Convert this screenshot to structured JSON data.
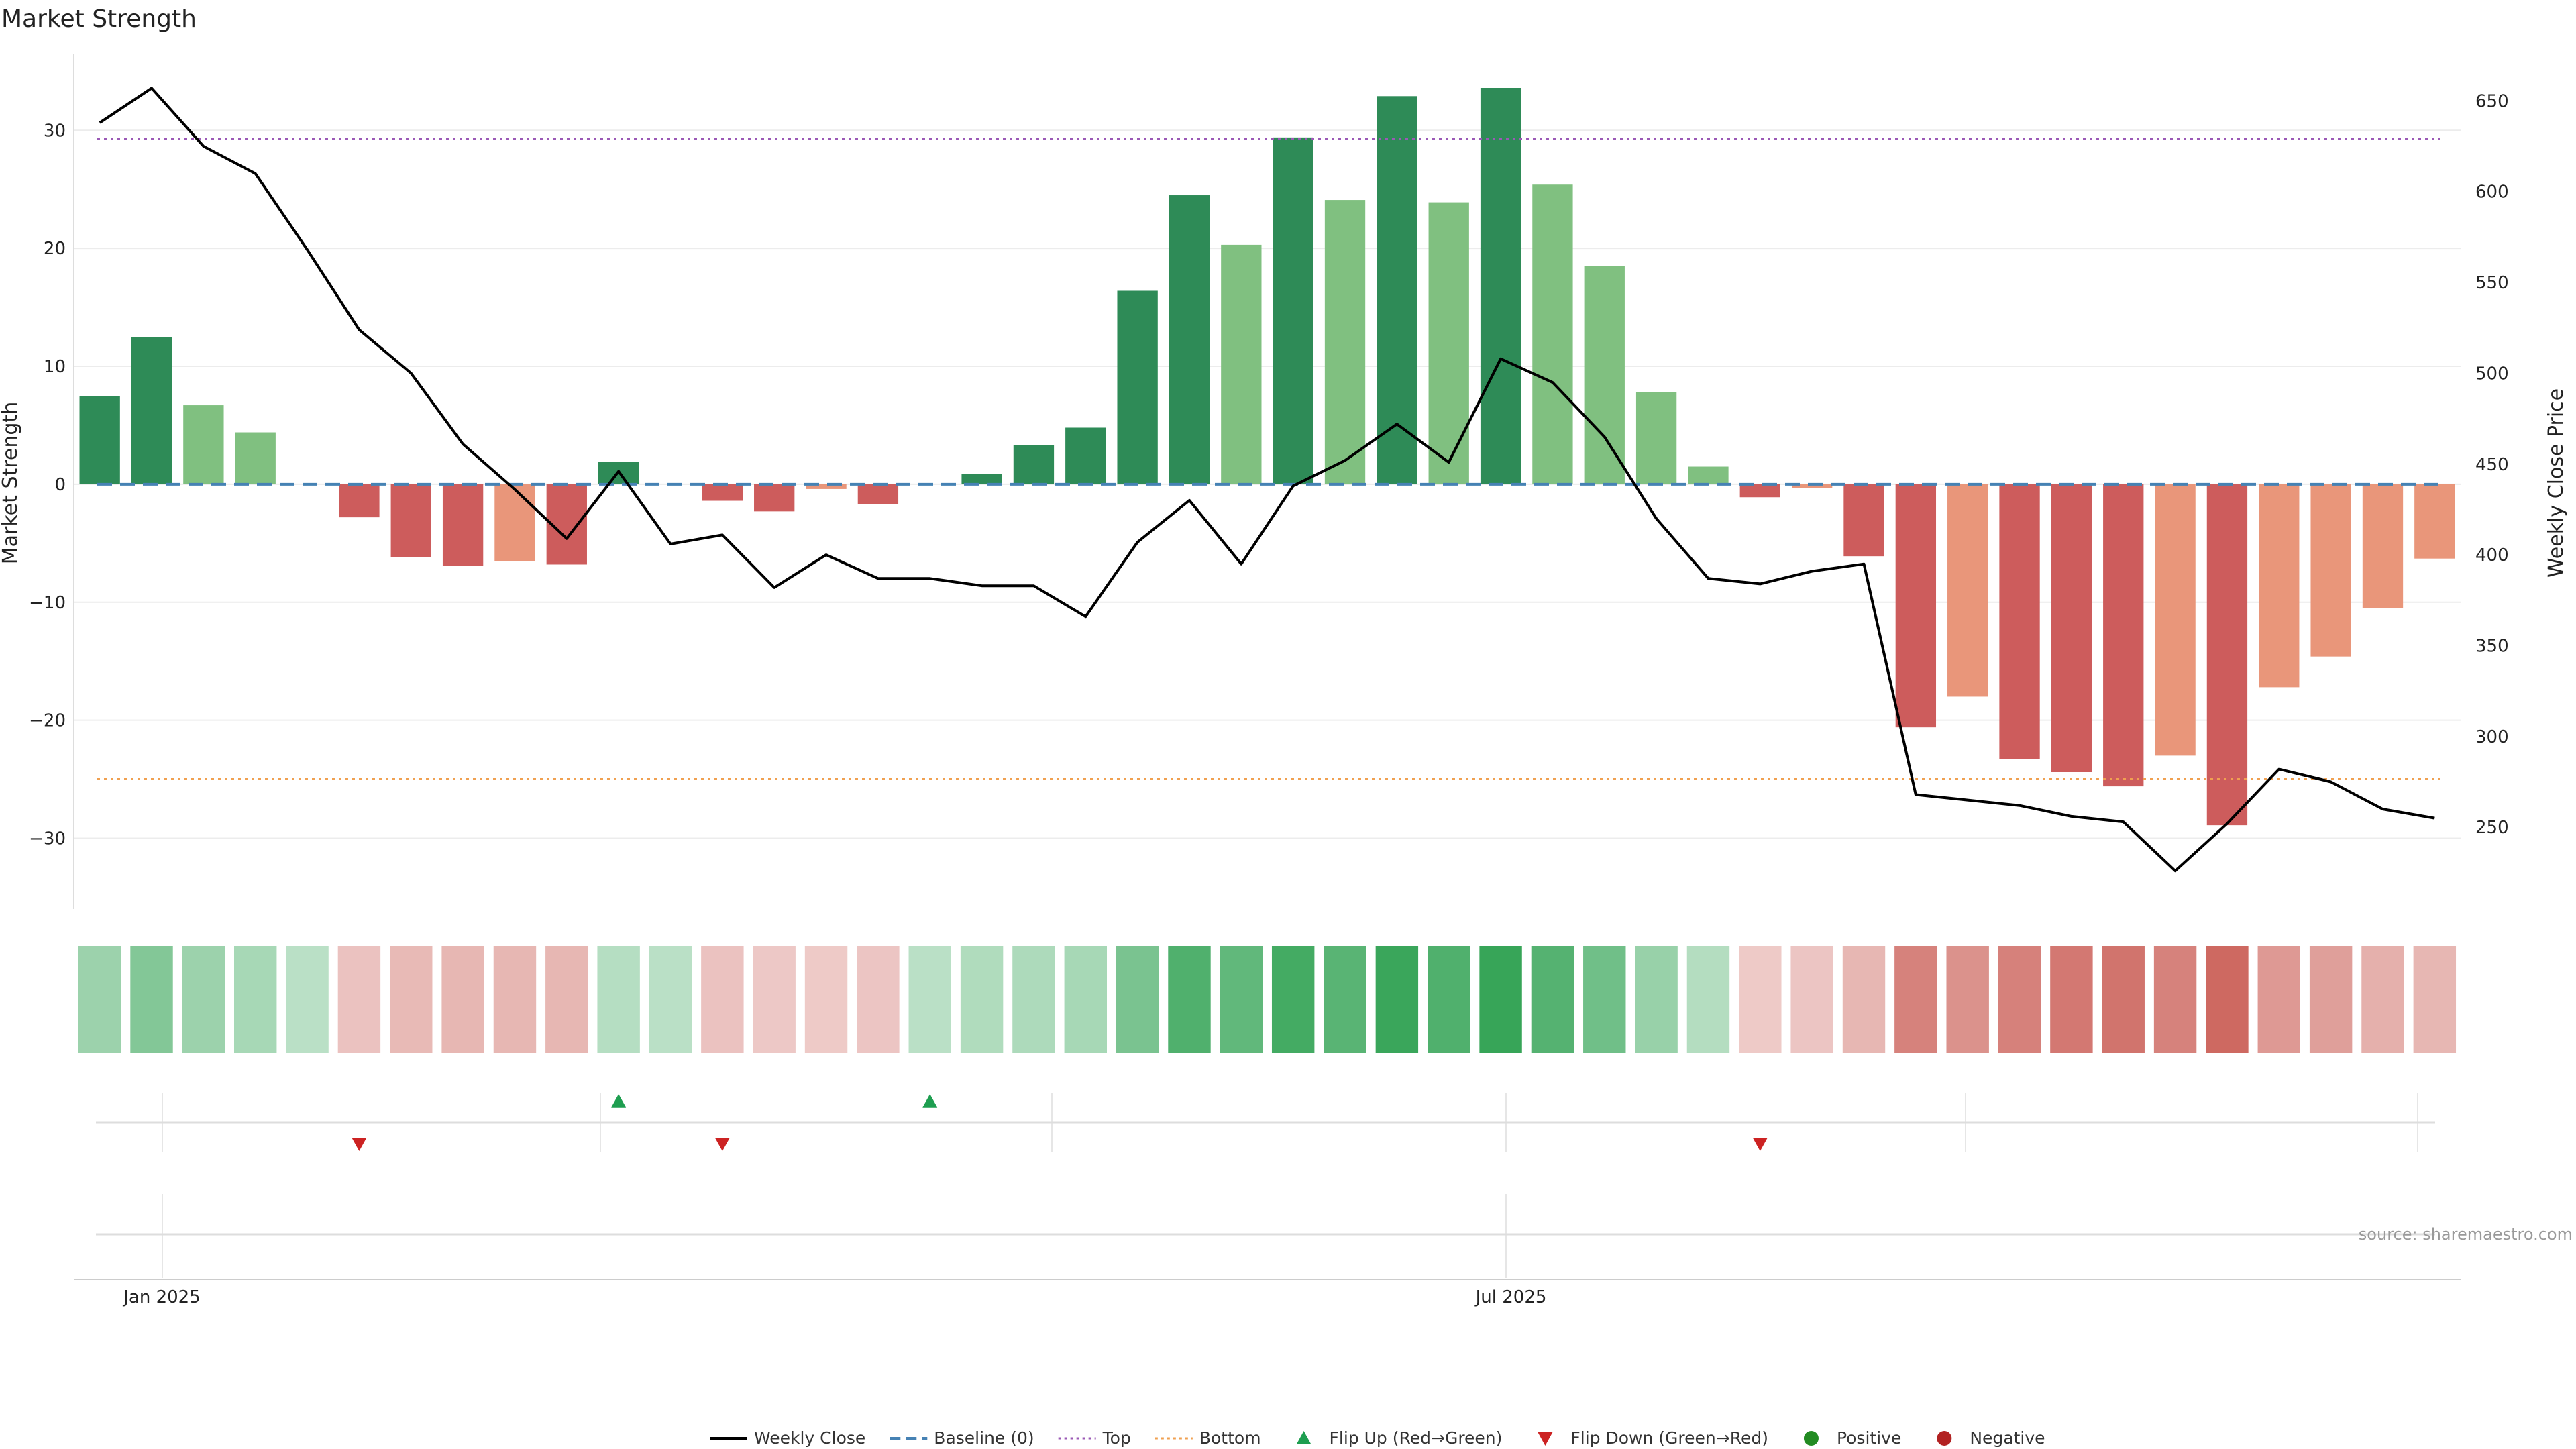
{
  "chart_data": {
    "type": "bar",
    "title": "Market Strength",
    "ylabel": "Market Strength",
    "y2label": "Weekly Close Price",
    "source": "source: sharemaestro.com",
    "ylim": [
      -36,
      36.5
    ],
    "y2lim": [
      205,
      676
    ],
    "yticks": [
      -30,
      -20,
      -10,
      0,
      10,
      20,
      30
    ],
    "y2ticks": [
      250,
      300,
      350,
      400,
      450,
      500,
      550,
      600,
      650
    ],
    "xlabels": [
      {
        "label": "Jan 2025",
        "index": 1.7
      },
      {
        "label": "Jul 2025",
        "index": 27.7
      }
    ],
    "top_line": 29.3,
    "bottom_line": -25,
    "grid": true,
    "legend_position": "bottom",
    "colors": {
      "strong_pos": "#2e8b57",
      "weak_pos": "#80c080",
      "strong_neg": "#cd5c5c",
      "weak_neg": "#e9967a",
      "close": "#000000",
      "baseline": "#4682b4",
      "top": "#9b59b6",
      "bottom": "#f0a050",
      "flip_up": "#1e9e50",
      "flip_down": "#cc2222"
    },
    "series": [
      {
        "name": "Market Strength",
        "values": [
          7.5,
          12.5,
          6.7,
          4.4,
          0,
          -2.8,
          -6.2,
          -6.9,
          -6.5,
          -6.8,
          1.9,
          0,
          -1.4,
          -2.3,
          -0.4,
          -1.7,
          0,
          0.9,
          3.3,
          4.8,
          16.4,
          24.5,
          20.3,
          29.4,
          24.1,
          32.9,
          23.9,
          33.6,
          25.4,
          18.5,
          7.8,
          1.5,
          -1.1,
          -0.3,
          -6.1,
          -20.6,
          -18.0,
          -23.3,
          -24.4,
          -25.6,
          -23.0,
          -28.9,
          -17.2,
          -14.6,
          -10.5,
          -6.3
        ],
        "style": [
          "strong_pos",
          "strong_pos",
          "weak_pos",
          "weak_pos",
          "strong_pos",
          "strong_neg",
          "strong_neg",
          "strong_neg",
          "weak_neg",
          "strong_neg",
          "strong_pos",
          "strong_pos",
          "strong_neg",
          "strong_neg",
          "weak_neg",
          "strong_neg",
          "strong_pos",
          "strong_pos",
          "strong_pos",
          "strong_pos",
          "strong_pos",
          "strong_pos",
          "weak_pos",
          "strong_pos",
          "weak_pos",
          "strong_pos",
          "weak_pos",
          "strong_pos",
          "weak_pos",
          "weak_pos",
          "weak_pos",
          "weak_pos",
          "strong_neg",
          "weak_neg",
          "strong_neg",
          "strong_neg",
          "weak_neg",
          "strong_neg",
          "strong_neg",
          "strong_neg",
          "weak_neg",
          "strong_neg",
          "weak_neg",
          "weak_neg",
          "weak_neg",
          "weak_neg"
        ]
      },
      {
        "name": "Weekly Close",
        "axis": "right",
        "values": [
          638,
          657,
          625,
          610,
          568,
          524,
          500,
          461,
          436,
          409,
          446,
          406,
          411,
          382,
          400,
          387,
          387,
          383,
          383,
          366,
          407,
          430,
          395,
          438,
          452,
          472,
          451,
          508,
          495,
          465,
          420,
          387,
          384,
          391,
          395,
          268,
          265,
          262,
          256,
          253,
          226,
          252,
          282,
          275,
          260,
          255
        ]
      },
      {
        "name": "Baseline (0)",
        "values": [
          0
        ]
      },
      {
        "name": "Top",
        "values": [
          29.3
        ]
      },
      {
        "name": "Bottom",
        "values": [
          -25
        ]
      }
    ],
    "heatmap": {
      "values": [
        0.4,
        0.55,
        0.4,
        0.33,
        0.22,
        0.22,
        0.28,
        0.3,
        0.3,
        0.3,
        0.25,
        0.22,
        0.22,
        0.18,
        0.17,
        0.2,
        0.22,
        0.28,
        0.3,
        0.33,
        0.6,
        0.85,
        0.75,
        0.92,
        0.8,
        0.98,
        0.85,
        1.0,
        0.82,
        0.66,
        0.42,
        0.26,
        0.17,
        0.2,
        0.3,
        0.65,
        0.55,
        0.66,
        0.72,
        0.75,
        0.65,
        0.82,
        0.5,
        0.46,
        0.34,
        0.3
      ],
      "signs": [
        1,
        1,
        1,
        1,
        1,
        -1,
        -1,
        -1,
        -1,
        -1,
        1,
        1,
        -1,
        -1,
        -1,
        -1,
        1,
        1,
        1,
        1,
        1,
        1,
        1,
        1,
        1,
        1,
        1,
        1,
        1,
        1,
        1,
        1,
        -1,
        -1,
        -1,
        -1,
        -1,
        -1,
        -1,
        -1,
        -1,
        -1,
        -1,
        -1,
        -1,
        -1
      ]
    },
    "flips": {
      "up": [
        10,
        16
      ],
      "down": [
        5,
        12,
        32
      ]
    },
    "legend": [
      {
        "label": "Weekly Close",
        "kind": "line",
        "color": "#000000"
      },
      {
        "label": "Baseline (0)",
        "kind": "dashed",
        "color": "#4682b4"
      },
      {
        "label": "Top",
        "kind": "dotted",
        "color": "#9b59b6"
      },
      {
        "label": "Bottom",
        "kind": "dotted",
        "color": "#f0a050"
      },
      {
        "label": "Flip Up (Red→Green)",
        "kind": "tri-up",
        "color": "#1e9e50"
      },
      {
        "label": "Flip Down (Green→Red)",
        "kind": "tri-down",
        "color": "#cc2222"
      },
      {
        "label": "Positive",
        "kind": "dot",
        "color": "#228b22"
      },
      {
        "label": "Negative",
        "kind": "dot",
        "color": "#b22222"
      }
    ]
  }
}
